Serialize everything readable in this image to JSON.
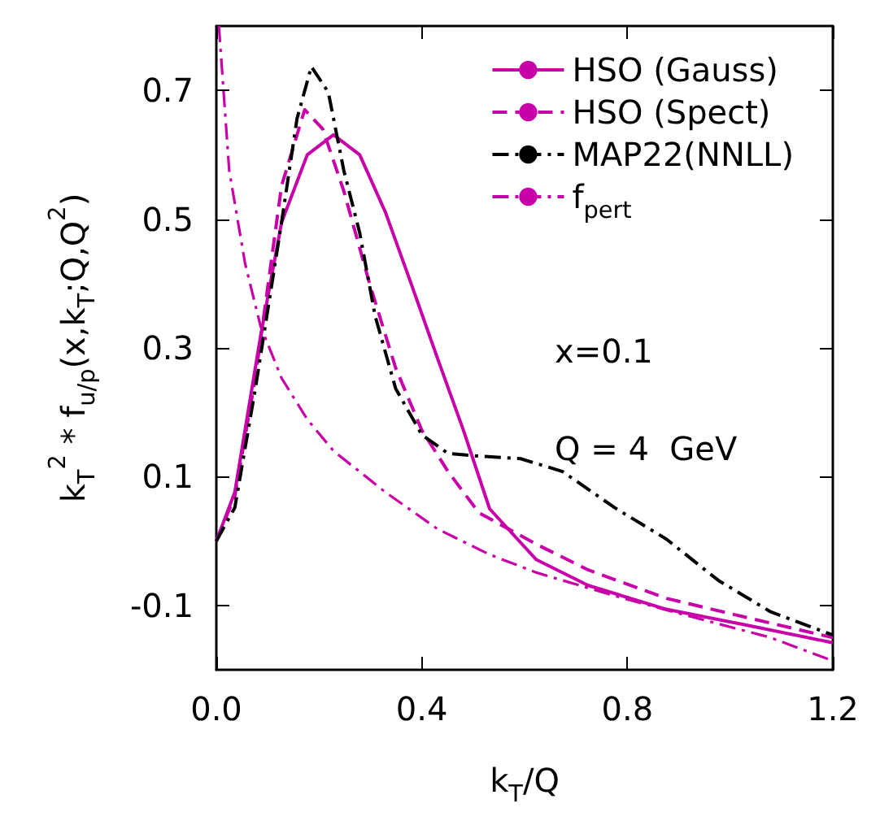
{
  "chart_data": {
    "type": "line",
    "xlabel": "k$_{T}$/Q",
    "ylabel": "k$_{T}$$^{2}$ * f$_{u/p}$(x,k$_{T}$;Q,Q$^{2}$)",
    "xlim": [
      0,
      1.2
    ],
    "xticks": [
      {
        "value": 0,
        "label": "0.0"
      },
      0.4,
      0.8,
      {
        "value": 1.2,
        "label": "1.2"
      }
    ],
    "ylim": [
      -0.2,
      0.8
    ],
    "yticks": [
      -0.1,
      0.1,
      0.3,
      0.5,
      0.7
    ],
    "grid": false,
    "legend": "top right",
    "marker": "none",
    "annotations": [
      "x=0.1",
      "Q = 4  GeV"
    ],
    "series": [
      {
        "name": "HSO (Gauss)",
        "color": "#c800a8",
        "line_style": "solid",
        "x": [
          0,
          0.036,
          0.086,
          0.127,
          0.177,
          0.228,
          0.279,
          0.329,
          0.38,
          0.43,
          0.481,
          0.532,
          0.623,
          0.724,
          0.876,
          1.028,
          1.2
        ],
        "values": [
          0,
          0.076,
          0.318,
          0.495,
          0.6,
          0.631,
          0.6,
          0.511,
          0.398,
          0.285,
          0.172,
          0.05,
          -0.029,
          -0.069,
          -0.106,
          -0.13,
          -0.158
        ]
      },
      {
        "name": "HSO (Spect)",
        "color": "#c800a8",
        "line_style": "dashed",
        "x": [
          0,
          0.036,
          0.076,
          0.127,
          0.172,
          0.207,
          0.248,
          0.299,
          0.349,
          0.4,
          0.451,
          0.511,
          0.623,
          0.724,
          0.876,
          1.028,
          1.2
        ],
        "values": [
          0,
          0.07,
          0.254,
          0.552,
          0.67,
          0.64,
          0.544,
          0.398,
          0.269,
          0.172,
          0.108,
          0.044,
          -0.005,
          -0.045,
          -0.089,
          -0.118,
          -0.15
        ]
      },
      {
        "name": "MAP22(NNLL)",
        "color": "#000000",
        "line_style": "dashdot",
        "x": [
          0,
          0.036,
          0.076,
          0.127,
          0.157,
          0.185,
          0.218,
          0.248,
          0.279,
          0.309,
          0.349,
          0.4,
          0.451,
          0.511,
          0.592,
          0.674,
          0.775,
          0.876,
          0.977,
          1.079,
          1.2
        ],
        "values": [
          0,
          0.052,
          0.237,
          0.495,
          0.656,
          0.737,
          0.697,
          0.576,
          0.479,
          0.35,
          0.237,
          0.165,
          0.136,
          0.132,
          0.128,
          0.108,
          0.052,
          0.003,
          -0.061,
          -0.11,
          -0.146
        ]
      },
      {
        "name": "f$_{pert}$",
        "color": "#c800a8",
        "line_style": "dashdot",
        "x": [
          0.005,
          0.025,
          0.056,
          0.086,
          0.127,
          0.177,
          0.228,
          0.329,
          0.43,
          0.532,
          0.623,
          0.775,
          0.927,
          1.079,
          1.2
        ],
        "values": [
          0.8,
          0.576,
          0.431,
          0.334,
          0.253,
          0.189,
          0.14,
          0.076,
          0.019,
          -0.021,
          -0.049,
          -0.085,
          -0.118,
          -0.15,
          -0.186
        ]
      }
    ]
  }
}
